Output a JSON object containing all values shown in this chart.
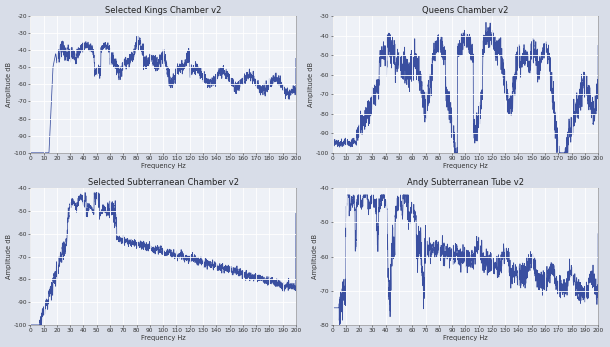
{
  "titles": [
    "Selected Kings Chamber v2",
    "Queens Chamber v2",
    "Selected Subterranean Chamber v2",
    "Andy Subterranean Tube v2"
  ],
  "xlabel": "Frequency Hz",
  "ylabel": "Amplitude dB",
  "line_color": "#3a4fa0",
  "line_width": 0.55,
  "bg_color": "#eef1f7",
  "grid_color": "#ffffff",
  "outer_bg": "#d8dde8",
  "title_fontsize": 6.0,
  "label_fontsize": 4.8,
  "tick_fontsize": 4.2,
  "kings_ylim": [
    -100,
    -20
  ],
  "kings_yticks": [
    -100,
    -90,
    -80,
    -70,
    -60,
    -50,
    -40,
    -30,
    -20
  ],
  "queens_ylim": [
    -100,
    -30
  ],
  "queens_yticks": [
    -100,
    -90,
    -80,
    -70,
    -60,
    -50,
    -40,
    -30
  ],
  "sub_ylim": [
    -100,
    -40
  ],
  "sub_yticks": [
    -100,
    -90,
    -80,
    -70,
    -60,
    -50,
    -40
  ],
  "tube_ylim": [
    -80,
    -40
  ],
  "tube_yticks": [
    -80,
    -70,
    -60,
    -50,
    -40
  ],
  "xticks": [
    0,
    10,
    20,
    30,
    40,
    50,
    60,
    70,
    80,
    90,
    100,
    110,
    120,
    130,
    140,
    150,
    160,
    170,
    180,
    190,
    200
  ]
}
